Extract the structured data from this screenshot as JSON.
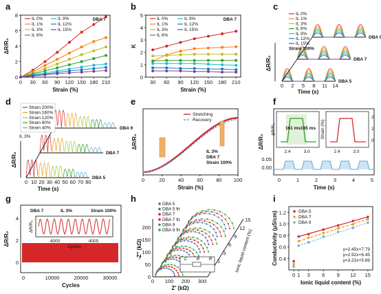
{
  "chart_data": [
    {
      "panel": "a",
      "type": "line",
      "xlabel": "Strain (%)",
      "ylabel": "ΔR/R₀",
      "x": [
        0,
        30,
        60,
        90,
        120,
        150,
        180,
        210
      ],
      "xlim": [
        0,
        220
      ],
      "ylim": [
        0,
        8
      ],
      "yticks": [
        0,
        2,
        4,
        6,
        8
      ],
      "annotation": "DBA 7",
      "series": [
        {
          "name": "IL 0%",
          "color": "#d62728",
          "values": [
            0,
            0.9,
            2.0,
            3.2,
            4.5,
            5.8,
            6.8,
            7.8
          ]
        },
        {
          "name": "IL 1%",
          "color": "#ff7f0e",
          "values": [
            0,
            0.7,
            1.5,
            2.3,
            3.1,
            3.9,
            4.6,
            5.1
          ]
        },
        {
          "name": "IL 3%",
          "color": "#bcbd22",
          "values": [
            0,
            0.5,
            1.1,
            1.7,
            2.3,
            2.9,
            3.4,
            3.9
          ]
        },
        {
          "name": "IL 6%",
          "color": "#2ca02c",
          "values": [
            0,
            0.4,
            0.8,
            1.2,
            1.6,
            2.0,
            2.4,
            2.8
          ]
        },
        {
          "name": "IL 9%",
          "color": "#17becf",
          "values": [
            0,
            0.3,
            0.55,
            0.8,
            1.05,
            1.3,
            1.55,
            1.7
          ]
        },
        {
          "name": "IL 12%",
          "color": "#1f77b4",
          "values": [
            0,
            0.2,
            0.4,
            0.6,
            0.8,
            0.95,
            1.1,
            1.25
          ]
        },
        {
          "name": "IL 15%",
          "color": "#7b3f99",
          "values": [
            0,
            0.15,
            0.3,
            0.45,
            0.55,
            0.65,
            0.75,
            0.85
          ]
        }
      ]
    },
    {
      "panel": "b",
      "type": "line",
      "xlabel": "Strain (%)",
      "ylabel": "K",
      "x": [
        30,
        60,
        90,
        120,
        150,
        180,
        210
      ],
      "xlim": [
        15,
        220
      ],
      "ylim": [
        0,
        5
      ],
      "yticks": [
        0,
        1,
        2,
        3,
        4,
        5
      ],
      "annotation": "DBA 7",
      "series": [
        {
          "name": "IL 0%",
          "color": "#d62728",
          "values": [
            2.2,
            2.5,
            2.8,
            3.1,
            3.3,
            3.5,
            3.7
          ]
        },
        {
          "name": "IL 1%",
          "color": "#ff7f0e",
          "values": [
            1.3,
            1.8,
            2.1,
            2.3,
            2.35,
            2.4,
            2.45
          ]
        },
        {
          "name": "IL 3%",
          "color": "#bcbd22",
          "values": [
            1.7,
            1.75,
            1.8,
            1.85,
            1.85,
            1.85,
            1.85
          ]
        },
        {
          "name": "IL 6%",
          "color": "#2ca02c",
          "values": [
            1.3,
            1.35,
            1.35,
            1.35,
            1.35,
            1.35,
            1.35
          ]
        },
        {
          "name": "IL 9%",
          "color": "#17becf",
          "values": [
            1.1,
            1.1,
            1.1,
            1.1,
            1.05,
            1.0,
            0.95
          ]
        },
        {
          "name": "IL 12%",
          "color": "#1f77b4",
          "values": [
            0.75,
            0.75,
            0.7,
            0.7,
            0.65,
            0.65,
            0.6
          ]
        },
        {
          "name": "IL 15%",
          "color": "#7b3f99",
          "values": [
            0.5,
            0.5,
            0.5,
            0.45,
            0.45,
            0.4,
            0.4
          ]
        }
      ]
    },
    {
      "panel": "c",
      "type": "line",
      "xlabel": "Time (s)",
      "ylabel": "ΔR/R₀",
      "xticks": [
        "0",
        "2",
        "5",
        "8",
        "11",
        "14"
      ],
      "stacks": [
        "DBA 5",
        "DBA 7",
        "DBA 9"
      ],
      "legend": [
        "IL 0%",
        "IL 1%",
        "IL 3%",
        "IL 6%",
        "IL 9%",
        "IL 12%",
        "IL 15%",
        "Strain 100%"
      ]
    },
    {
      "panel": "d",
      "type": "line",
      "xlabel": "Time (s)",
      "ylabel": "ΔR/R₀",
      "xticks": [
        "0",
        "10",
        "20",
        "30",
        "40",
        "50",
        "60",
        "70",
        "80"
      ],
      "stacks": [
        "DBA 5",
        "DBA 7",
        "DBA 9"
      ],
      "legend": [
        "Strain 200%",
        "Strain 160%",
        "Strain 120%",
        "Strain 80%",
        "Strain 40%"
      ],
      "annotation": "IL 3%"
    },
    {
      "panel": "e",
      "type": "line",
      "xlabel": "Strain (%)",
      "ylabel": "ΔR/R₀",
      "x": [
        0,
        20,
        40,
        60,
        80,
        100
      ],
      "xlim": [
        0,
        100
      ],
      "annotation": [
        "IL 3%",
        "DBA 7",
        "Strain 100%"
      ],
      "series": [
        {
          "name": "Stretching",
          "color": "#d62728",
          "values": [
            0,
            0.18,
            0.45,
            0.75,
            0.93,
            1.0
          ]
        },
        {
          "name": "Recovery",
          "color": "#5fa8d3",
          "values": [
            0,
            0.12,
            0.38,
            0.7,
            0.92,
            1.0
          ]
        }
      ]
    },
    {
      "panel": "f",
      "type": "line",
      "xlabel": "Time (s)",
      "ylabel": "ΔR/R₀",
      "xticks": [
        "0",
        "1",
        "2",
        "3",
        "4",
        "5"
      ],
      "yticks": [
        "0.00",
        "0.05"
      ],
      "insets": [
        {
          "ylabel": "ΔR/R₀",
          "xticks": [
            "2.4",
            "3.0"
          ],
          "annotation": [
            "161 ms",
            "165 ms"
          ]
        },
        {
          "ylabel": "Strain (%)",
          "xticks": [
            "2.4",
            "3.0"
          ],
          "yticks": [
            "0",
            "1",
            "2"
          ]
        }
      ]
    },
    {
      "panel": "g",
      "type": "line",
      "xlabel": "Cycles",
      "ylabel": "ΔR/R₀",
      "xticks": [
        "0",
        "10000",
        "20000",
        "30000"
      ],
      "yticks": [
        "0",
        "2",
        "4"
      ],
      "annotation": [
        "DBA 7",
        "IL 3%",
        "Strain 100%"
      ],
      "inset": {
        "xlabel": "Cycles",
        "ylabel": "ΔR/R₀",
        "xticks": [
          "4000",
          "4005"
        ]
      }
    },
    {
      "panel": "h",
      "type": "scatter",
      "xlabel": "Z' (kΩ)",
      "ylabel": "-Z'' (kΩ)",
      "zlabel": "Ionic liquid content (%)",
      "xticks": [
        "0",
        "100",
        "200",
        "300"
      ],
      "yticks": [
        "0",
        "50",
        "100",
        "150",
        "200"
      ],
      "zticks": [
        "0",
        "1",
        "3",
        "6",
        "9",
        "12",
        "15"
      ],
      "legend": [
        "DBA 5",
        "DBA 5 fit",
        "DBA 7",
        "DBA 7 fit",
        "DBA 9",
        "DBA 9 fit"
      ],
      "circuit_labels": [
        "C",
        "R",
        "R"
      ]
    },
    {
      "panel": "i",
      "type": "scatter",
      "xlabel": "Ionic liquid content (%)",
      "ylabel": "Conductivity (μS/cm)",
      "x": [
        0,
        1,
        3,
        6,
        9,
        12,
        15
      ],
      "xlim": [
        -1,
        16
      ],
      "ylim": [
        0.2,
        1.3
      ],
      "yticks": [
        0.4,
        0.6,
        0.8,
        1.0,
        1.2
      ],
      "series": [
        {
          "name": "DBA 5",
          "color": "#d62728",
          "values": [
            0.35,
            0.78,
            0.82,
            0.9,
            0.97,
            1.05,
            1.12
          ]
        },
        {
          "name": "DBA 7",
          "color": "#e6a020",
          "values": [
            0.3,
            0.7,
            0.76,
            0.84,
            0.92,
            0.99,
            1.08
          ]
        },
        {
          "name": "DBA 9",
          "color": "#6baed6",
          "values": [
            0.26,
            0.62,
            0.68,
            0.78,
            0.86,
            0.93,
            1.02
          ]
        }
      ],
      "fits": [
        "y=2.45x+7.79",
        "y=2.92x+6.45",
        "y=3.22x+5.69"
      ]
    }
  ]
}
